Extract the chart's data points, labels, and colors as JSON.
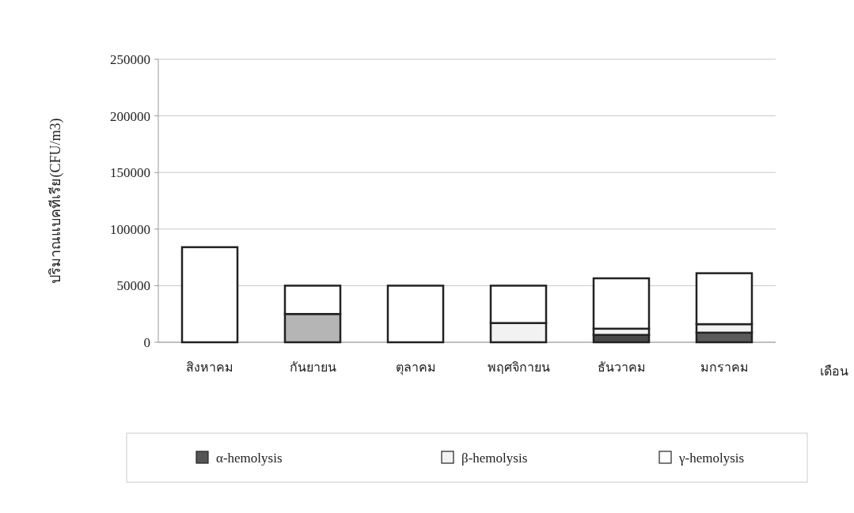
{
  "chart_data": {
    "type": "bar",
    "stacked": true,
    "xlabel": "เดือน",
    "ylabel": "ปริมาณแบคทีเรีย(CFU/m3)",
    "categories": [
      "สิงหาคม",
      "กันยายน",
      "ตุลาคม",
      "พฤศจิกายน",
      "ธันวาคม",
      "มกราคม"
    ],
    "series": [
      {
        "name": "α-hemolysis",
        "color": "#555555",
        "colors": [
          "#555555",
          "#b5b5b5",
          "#555555",
          "#555555",
          "#4a4a4a",
          "#5a5a5a"
        ],
        "values": [
          0,
          25000,
          0,
          0,
          6500,
          8500
        ]
      },
      {
        "name": "β-hemolysis",
        "color": "#f2f2f2",
        "values": [
          0,
          0,
          0,
          17000,
          5500,
          7500
        ]
      },
      {
        "name": "γ-hemolysis",
        "color": "#ffffff",
        "values": [
          84000,
          25000,
          50000,
          33000,
          44500,
          45000
        ]
      }
    ],
    "ylim": [
      0,
      250000
    ],
    "yticks": [
      0,
      50000,
      100000,
      150000,
      200000,
      250000
    ],
    "grid": "y",
    "legend": "bottom"
  }
}
